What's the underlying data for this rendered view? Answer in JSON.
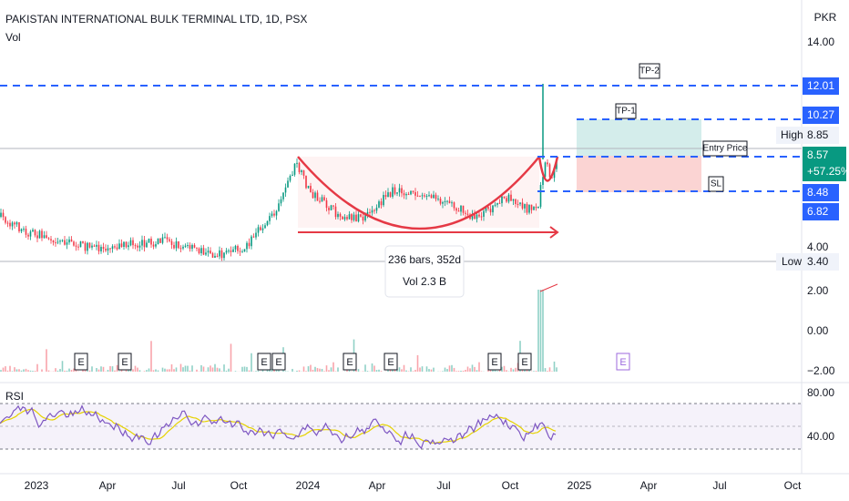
{
  "header": {
    "title": "PAKISTAN INTERNATIONAL BULK TERMINAL LTD, 1D, PSX",
    "indicator": "Vol",
    "currency": "PKR"
  },
  "price_axis": [
    "14.00",
    "4.00",
    "2.00",
    "0.00",
    "−2.00"
  ],
  "price_tags": {
    "tp2": "12.01",
    "tp1": "10.27",
    "high": "8.85",
    "current": "8.57",
    "change": "+57.25%",
    "sl": "8.48",
    "low_tag": "6.82",
    "low": "3.40"
  },
  "tag_labels": {
    "high": "High",
    "low": "Low"
  },
  "annotations": {
    "tp2": "TP-2",
    "tp1": "TP-1",
    "entry": "Entry Price",
    "sl": "SL",
    "range": "236 bars, 352d",
    "volume": "Vol 2.3 B"
  },
  "earnings_marker": "E",
  "rsi": {
    "label": "RSI",
    "axis": [
      "80.00",
      "40.00"
    ]
  },
  "time_axis": [
    "2023",
    "Apr",
    "Jul",
    "Oct",
    "2024",
    "Apr",
    "Jul",
    "Oct",
    "2025",
    "Apr",
    "Jul",
    "Oct"
  ]
}
